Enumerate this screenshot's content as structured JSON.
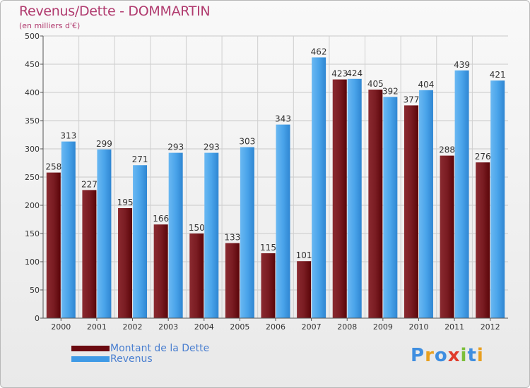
{
  "title": "Revenus/Dette - DOMMARTIN",
  "subtitle": "(en milliers d'€)",
  "brand": "Proxiti",
  "colors": {
    "dette": "#6b0a10",
    "revenus": "#3f9ae6",
    "title": "#b03a6e"
  },
  "chart_data": {
    "type": "bar",
    "categories": [
      "2000",
      "2001",
      "2002",
      "2003",
      "2004",
      "2005",
      "2006",
      "2007",
      "2008",
      "2009",
      "2010",
      "2011",
      "2012"
    ],
    "series": [
      {
        "name": "Montant de la Dette",
        "values": [
          258,
          227,
          195,
          166,
          150,
          133,
          115,
          101,
          423,
          405,
          377,
          288,
          276
        ]
      },
      {
        "name": "Revenus",
        "values": [
          313,
          299,
          271,
          293,
          293,
          303,
          343,
          462,
          424,
          392,
          404,
          439,
          421
        ]
      }
    ],
    "ylim": [
      0,
      500
    ],
    "yticks": [
      0,
      50,
      100,
      150,
      200,
      250,
      300,
      350,
      400,
      450,
      500
    ],
    "grid": true,
    "legend_position": "bottom-left"
  }
}
